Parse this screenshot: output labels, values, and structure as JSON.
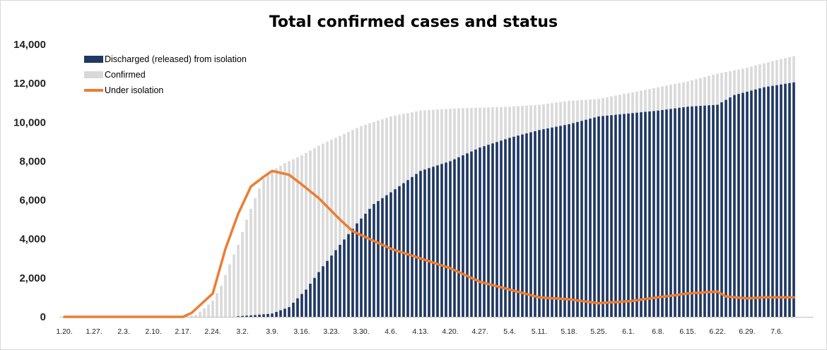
{
  "colors": {
    "discharged": "#1f3864",
    "confirmed": "#d9d9d9",
    "isolation": "#ed7d31"
  },
  "chart_data": {
    "type": "bar",
    "title": "Total confirmed cases and status",
    "xlabel": "",
    "ylabel": "",
    "ylim": [
      0,
      14000
    ],
    "yticks": [
      "0",
      "2,000",
      "4,000",
      "6,000",
      "8,000",
      "10,000",
      "12,000",
      "14,000"
    ],
    "x_tick_labels": [
      "1.20.",
      "1.27.",
      "2.3.",
      "2.10.",
      "2.17.",
      "2.24.",
      "3.2.",
      "3.9.",
      "3.16.",
      "3.23.",
      "3.30.",
      "4.6.",
      "4.13.",
      "4.20.",
      "4.27.",
      "5.4.",
      "5.11.",
      "5.18.",
      "5.25.",
      "6.1.",
      "6.8.",
      "6.15.",
      "6.22.",
      "6.29.",
      "7.6."
    ],
    "legend_position": "top-left",
    "series": [
      {
        "name": "Discharged (released) from isolation",
        "kind": "bar",
        "sample_dates": [
          "3.1.",
          "3.5.",
          "3.9.",
          "3.13.",
          "3.17.",
          "3.21.",
          "3.25.",
          "3.29.",
          "4.2.",
          "4.6.",
          "4.13.",
          "4.20.",
          "4.27.",
          "5.4.",
          "5.11.",
          "5.18.",
          "5.25.",
          "6.1.",
          "6.8.",
          "6.15.",
          "6.22.",
          "6.26.",
          "7.3.",
          "7.10."
        ],
        "values": [
          30,
          90,
          170,
          500,
          1400,
          2600,
          3700,
          4800,
          5800,
          6400,
          7500,
          8000,
          8700,
          9200,
          9600,
          9900,
          10300,
          10450,
          10600,
          10800,
          10900,
          11400,
          11800,
          12050
        ]
      },
      {
        "name": "Confirmed",
        "kind": "bar",
        "sample_dates": [
          "2.18.",
          "2.20.",
          "2.22.",
          "2.24.",
          "2.26.",
          "2.28.",
          "3.1.",
          "3.3.",
          "3.5.",
          "3.7.",
          "3.9.",
          "3.12.",
          "3.16.",
          "3.20.",
          "3.25.",
          "3.30.",
          "4.6.",
          "4.13.",
          "4.20.",
          "4.27.",
          "5.4.",
          "5.11.",
          "5.18.",
          "5.25.",
          "6.1.",
          "6.8.",
          "6.15.",
          "6.22.",
          "6.29.",
          "7.6.",
          "7.10."
        ],
        "values": [
          30,
          100,
          430,
          830,
          1600,
          2700,
          3700,
          5000,
          6100,
          7100,
          7500,
          7900,
          8300,
          8800,
          9300,
          9800,
          10300,
          10600,
          10700,
          10750,
          10800,
          10900,
          11100,
          11200,
          11500,
          11800,
          12100,
          12500,
          12800,
          13200,
          13400
        ]
      },
      {
        "name": "Under isolation",
        "kind": "line",
        "sample_dates": [
          "1.20.",
          "2.17.",
          "2.19.",
          "2.24.",
          "2.27.",
          "3.1.",
          "3.4.",
          "3.7.",
          "3.9.",
          "3.11.",
          "3.13.",
          "3.16.",
          "3.20.",
          "3.25.",
          "3.28.",
          "4.2.",
          "4.6.",
          "4.13.",
          "4.20.",
          "4.27.",
          "5.4.",
          "5.11.",
          "5.18.",
          "5.25.",
          "6.1.",
          "6.8.",
          "6.15.",
          "6.22.",
          "6.24.",
          "6.29.",
          "7.3.",
          "7.10."
        ],
        "values": [
          0,
          0,
          200,
          1200,
          3500,
          5300,
          6700,
          7200,
          7500,
          7400,
          7300,
          6800,
          6100,
          5000,
          4400,
          3900,
          3500,
          3000,
          2500,
          1800,
          1400,
          1000,
          900,
          700,
          800,
          1000,
          1200,
          1300,
          1050,
          950,
          1000,
          1000
        ]
      }
    ]
  }
}
